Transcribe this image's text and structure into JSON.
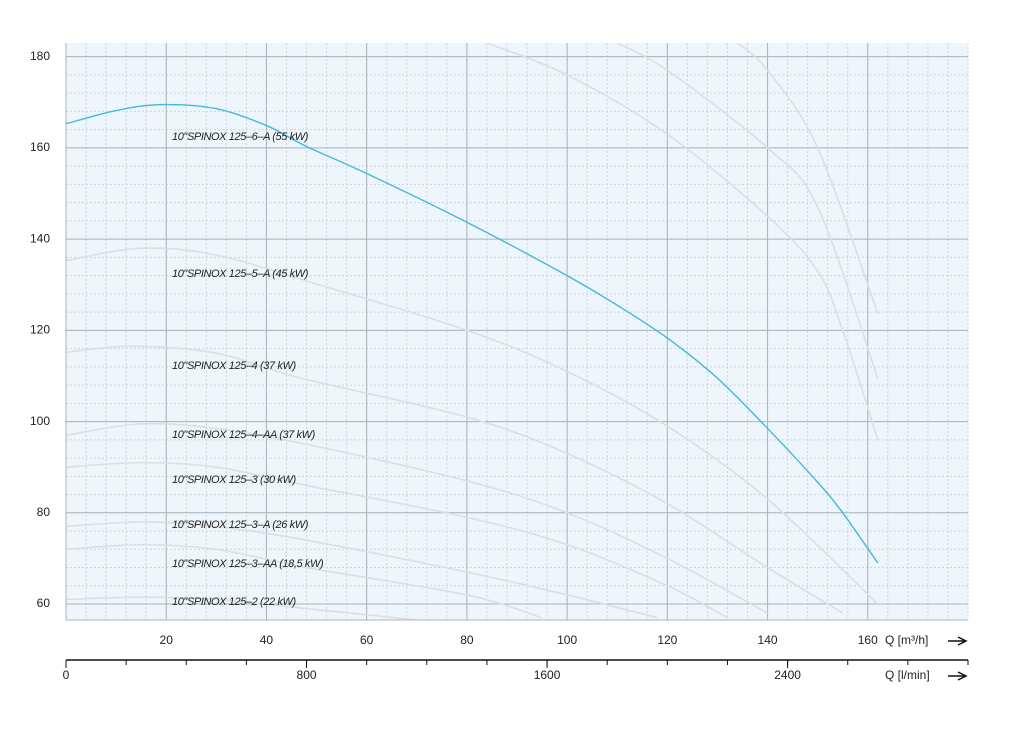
{
  "chart_data": {
    "type": "line",
    "xlabel": "Q [m³/h]",
    "x2label": "Q [l/min]",
    "xlim": [
      0,
      180
    ],
    "xticks": [
      20,
      40,
      60,
      80,
      100,
      120,
      140,
      160
    ],
    "x2lim": [
      0,
      3000
    ],
    "x2ticks": [
      0,
      800,
      1600,
      2400
    ],
    "ylim": [
      56.5,
      183
    ],
    "yticks": [
      60,
      80,
      100,
      120,
      140,
      160,
      180
    ],
    "grid": true,
    "series": [
      {
        "name": "10\"SPINOX 125–6–A (55 kW)",
        "color": "#45b8dc",
        "x": [
          0,
          10,
          19,
          30,
          40,
          48,
          60,
          80,
          100,
          110,
          120,
          130,
          140,
          150,
          155,
          162
        ],
        "values": [
          165.3,
          168.2,
          169.5,
          168.6,
          164.9,
          160.3,
          154.4,
          143.7,
          132,
          125.5,
          118.3,
          109.5,
          98.5,
          86.7,
          80,
          69
        ]
      },
      {
        "name": "10\"SPINOX 125–5–A (45 kW)",
        "color": "#dcdfe2",
        "x": [
          0,
          15,
          30,
          49,
          80,
          100,
          120,
          140,
          162
        ],
        "values": [
          135.3,
          138,
          136.5,
          130.5,
          120,
          111,
          99,
          83,
          60
        ]
      },
      {
        "name": "10\"SPINOX 125–4 (37 kW)",
        "color": "#dcdfe2",
        "x": [
          0,
          13,
          30,
          47,
          80,
          100,
          120,
          140,
          155
        ],
        "values": [
          115.2,
          116.5,
          115,
          109.5,
          101,
          93,
          82,
          68,
          58
        ]
      },
      {
        "name": "10\"SPINOX 125–4–AA (37 kW)",
        "color": "#dcdfe2",
        "x": [
          0,
          15,
          30,
          48,
          80,
          100,
          120,
          140
        ],
        "values": [
          97,
          99.5,
          98.5,
          95,
          87,
          80,
          70,
          58
        ]
      },
      {
        "name": "10\"SPINOX 125–3 (30 kW)",
        "color": "#dcdfe2",
        "x": [
          0,
          15,
          30,
          48,
          80,
          100,
          120,
          132
        ],
        "values": [
          90,
          91,
          90,
          86,
          79,
          73,
          64,
          57
        ]
      },
      {
        "name": "10\"SPINOX 125–3–A (26 kW)",
        "color": "#dcdfe2",
        "x": [
          0,
          15,
          30,
          48,
          80,
          100,
          118
        ],
        "values": [
          77,
          78,
          77,
          74,
          67,
          62,
          57
        ]
      },
      {
        "name": "10\"SPINOX 125–3–AA (18,5 kW)",
        "color": "#dcdfe2",
        "x": [
          0,
          15,
          30,
          48,
          80,
          95
        ],
        "values": [
          72,
          73,
          72,
          68,
          62,
          57
        ]
      },
      {
        "name": "10\"SPINOX 125–2 (22 kW)",
        "color": "#dcdfe2",
        "x": [
          0,
          15,
          30,
          48,
          70
        ],
        "values": [
          61,
          61.5,
          61,
          59,
          56.5
        ]
      },
      {
        "color": "#dcdfe2",
        "x": [
          84,
          100,
          120,
          140,
          150,
          155,
          162
        ],
        "values": [
          183,
          176,
          163,
          145,
          133,
          120,
          96
        ]
      },
      {
        "color": "#dcdfe2",
        "x": [
          110,
          120,
          140,
          150,
          162
        ],
        "values": [
          183,
          177,
          160,
          147,
          109.5
        ]
      },
      {
        "color": "#dcdfe2",
        "x": [
          134,
          140,
          150,
          162
        ],
        "values": [
          183,
          177,
          160,
          123.7
        ]
      }
    ]
  }
}
